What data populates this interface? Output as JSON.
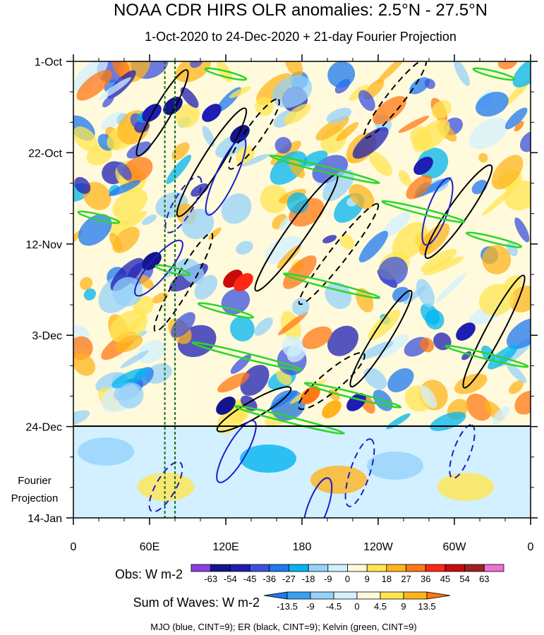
{
  "chart_data": {
    "type": "heatmap",
    "title": "NOAA CDR HIRS OLR anomalies: 2.5°N - 27.5°N",
    "subtitle": "1-Oct-2020 to 24-Dec-2020 + 21-day Fourier Projection",
    "y_ticks": [
      "1-Oct",
      "22-Oct",
      "12-Nov",
      "3-Dec",
      "24-Dec",
      "14-Jan"
    ],
    "x_ticks": [
      "0",
      "60E",
      "120E",
      "180",
      "120W",
      "60W",
      "0"
    ],
    "x_range": [
      0,
      360
    ],
    "projection_label": [
      "Fourier",
      "Projection"
    ],
    "reference_lines_lon": [
      72,
      80
    ],
    "obs_colorbar": {
      "label": "Obs: W m-2",
      "ticks": [
        "-63",
        "-54",
        "-45",
        "-36",
        "-27",
        "-18",
        "-9",
        "0",
        "9",
        "18",
        "27",
        "36",
        "45",
        "54",
        "63"
      ],
      "colors": [
        "#8a3fe0",
        "#14148c",
        "#1e1eb4",
        "#3c50dc",
        "#1e78f0",
        "#00b4f0",
        "#96d2fa",
        "#d2f0ff",
        "#fffadc",
        "#ffe650",
        "#ffb41e",
        "#ff7814",
        "#ff2814",
        "#c80a0a",
        "#a02020",
        "#f070d0"
      ]
    },
    "waves_colorbar": {
      "label": "Sum of Waves: W m-2",
      "ticks": [
        "-13.5",
        "-9",
        "-4.5",
        "0",
        "4.5",
        "9",
        "13.5"
      ],
      "colors": [
        "#1e78f0",
        "#3ca0f0",
        "#96d2fa",
        "#d2f0ff",
        "#fffadc",
        "#ffe650",
        "#ffb41e",
        "#ff7814"
      ]
    },
    "legend_note": "MJO (blue, CINT=9); ER (black, CINT=9); Kelvin (green, CINT=9)"
  }
}
